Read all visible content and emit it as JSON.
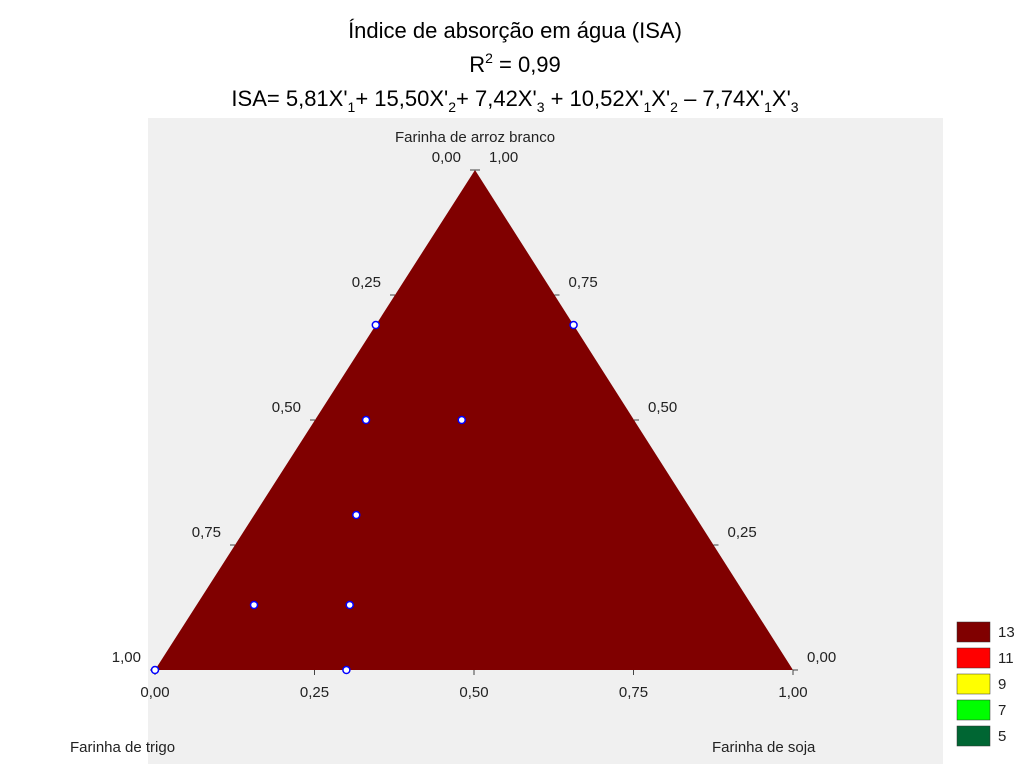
{
  "chart_data": {
    "type": "ternary",
    "title": "Índice de absorção em água (ISA)",
    "r_squared": {
      "base": "R",
      "sup": "2",
      "rest": " = 0,99"
    },
    "equation": [
      "ISA= 5,81X'",
      "1",
      "+ 15,50X'",
      "2",
      "+ 7,42X'",
      "3",
      " + 10,52X'",
      "1",
      "X'",
      "2",
      " – 7,74X'",
      "1",
      "X'",
      "3"
    ],
    "axes": {
      "top": "Farinha de arroz branco",
      "left": "Farinha de trigo",
      "right": "Farinha de soja"
    },
    "left_ticks": [
      {
        "value": 0,
        "label": "0,00"
      },
      {
        "value": 0.25,
        "label": "0,25"
      },
      {
        "value": 0.5,
        "label": "0,50"
      },
      {
        "value": 0.75,
        "label": "0,75"
      },
      {
        "value": 1,
        "label": "1,00"
      }
    ],
    "right_ticks": [
      {
        "value": 0,
        "label": "0,00"
      },
      {
        "value": 0.25,
        "label": "0,25"
      },
      {
        "value": 0.5,
        "label": "0,50"
      },
      {
        "value": 0.75,
        "label": "0,75"
      },
      {
        "value": 1,
        "label": "1,00"
      }
    ],
    "bottom_ticks": [
      {
        "value": 0,
        "label": "0,00"
      },
      {
        "value": 0.25,
        "label": "0,25"
      },
      {
        "value": 0.5,
        "label": "0,50"
      },
      {
        "value": 0.75,
        "label": "0,75"
      },
      {
        "value": 1,
        "label": "1,00"
      }
    ],
    "points": {
      "arroz": [
        0.69,
        0.69,
        0.5,
        0.5,
        0.31,
        0.13,
        0.13,
        0,
        0
      ],
      "trigo": [
        0.31,
        0,
        0.42,
        0.27,
        0.53,
        0.78,
        0.63,
        1,
        0.7
      ],
      "soja": [
        0,
        0.31,
        0.08,
        0.23,
        0.16,
        0.09,
        0.24,
        0,
        0.3
      ]
    },
    "point_color": "#0000ff",
    "legend": {
      "levels": [
        13,
        11,
        9,
        7,
        5
      ],
      "colors": [
        "#800000",
        "#ff0000",
        "#ffff00",
        "#00ff00",
        "#006633"
      ]
    }
  }
}
